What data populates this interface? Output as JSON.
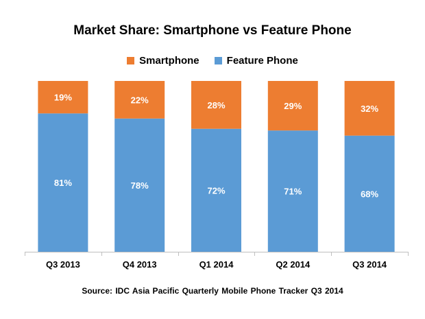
{
  "colors": {
    "smartphone": "#ED7D31",
    "feature_phone": "#5B9BD5",
    "axis": "#BFBFBF"
  },
  "chart_data": {
    "type": "bar",
    "stacked": true,
    "title": "Market Share: Smartphone vs Feature Phone",
    "categories": [
      "Q3 2013",
      "Q4 2013",
      "Q1 2014",
      "Q2 2014",
      "Q3 2014"
    ],
    "series": [
      {
        "name": "Smartphone",
        "values": [
          19,
          22,
          28,
          29,
          32
        ],
        "color": "#ED7D31"
      },
      {
        "name": "Feature Phone",
        "values": [
          81,
          78,
          72,
          71,
          68
        ],
        "color": "#5B9BD5"
      }
    ],
    "value_suffix": "%",
    "ylim": [
      0,
      100
    ],
    "legend_position": "top",
    "grid": false,
    "source": "Source: IDC Asia Pacific Quarterly Mobile Phone Tracker Q3 2014"
  }
}
